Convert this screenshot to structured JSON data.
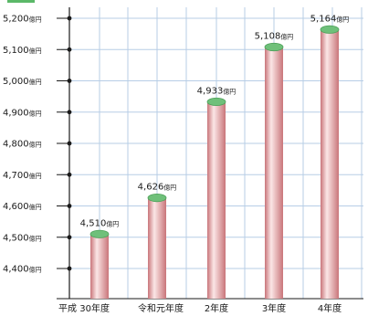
{
  "chart_data": {
    "type": "bar",
    "categories": [
      "平成 30年度",
      "令和元年度",
      "2年度",
      "3年度",
      "4年度"
    ],
    "values": [
      4510,
      4626,
      4933,
      5108,
      5164
    ],
    "value_labels": [
      "4,510",
      "4,626",
      "4,933",
      "5,108",
      "5,164"
    ],
    "value_unit": "億円",
    "ylim": [
      4300,
      5200
    ],
    "yticks": [
      4400,
      4500,
      4600,
      4700,
      4800,
      4900,
      5000,
      5100,
      5200
    ],
    "ytick_labels": [
      "4,400億円",
      "4,500億円",
      "4,600億円",
      "4,700億円",
      "4,800億円",
      "4,900億円",
      "5,000億円",
      "5,100億円",
      "5,200億円"
    ],
    "grid": true,
    "title": "",
    "xlabel": "",
    "ylabel": ""
  },
  "colors": {
    "bar_body": "#e8a4a6",
    "bar_highlight": "#fbe6e6",
    "bar_shadow": "#c9757a",
    "bar_cap": "#6fc07a",
    "bar_cap_rim": "#4fa15b",
    "grid_line": "#b7cde6",
    "axis_line": "#1a1a1a",
    "legend_accent": "#5bb868"
  }
}
